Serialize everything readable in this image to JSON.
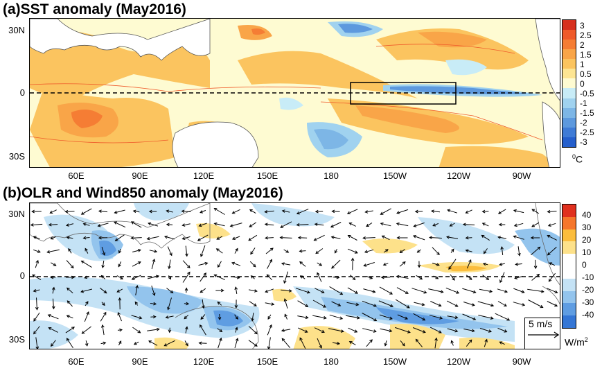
{
  "panel_a": {
    "title": "(a)SST anomaly (May2016)",
    "lat_labels": [
      "30N",
      "0",
      "30S"
    ],
    "lon_labels": [
      "60E",
      "90E",
      "120E",
      "150E",
      "180",
      "150W",
      "120W",
      "90W"
    ],
    "colorbar_labels": [
      "3",
      "2.5",
      "2",
      "1.5",
      "1",
      "0.5",
      "0",
      "-0.5",
      "-1",
      "-1.5",
      "-2",
      "-2.5",
      "-3"
    ],
    "colorbar_colors": [
      "#d7301f",
      "#ef5a2a",
      "#f57d34",
      "#f9a548",
      "#fbc45f",
      "#fde593",
      "#fefbd2",
      "#c8ecf7",
      "#a0d2ef",
      "#7db6e6",
      "#5d99de",
      "#3f7bd6",
      "#255fcc"
    ],
    "unit": "°C",
    "unit_super": "0",
    "unit_main": "C"
  },
  "panel_b": {
    "title": "(b)OLR and Wind850 anomaly (May2016)",
    "lat_labels": [
      "30N",
      "0",
      "30S"
    ],
    "lon_labels": [
      "60E",
      "90E",
      "120E",
      "150E",
      "180",
      "150W",
      "120W",
      "90W"
    ],
    "colorbar_labels": [
      "40",
      "30",
      "20",
      "10",
      "0",
      "-10",
      "-20",
      "-30",
      "-40"
    ],
    "colorbar_colors": [
      "#e0301e",
      "#f5762b",
      "#fbbd3d",
      "#fde18a",
      "#ffffff",
      "#ffffff",
      "#c4e2f5",
      "#93c4ed",
      "#5f9de2",
      "#3476d5"
    ],
    "unit_main": "W/m",
    "unit_super": "2",
    "reference_vector_label": "5 m/s"
  }
}
